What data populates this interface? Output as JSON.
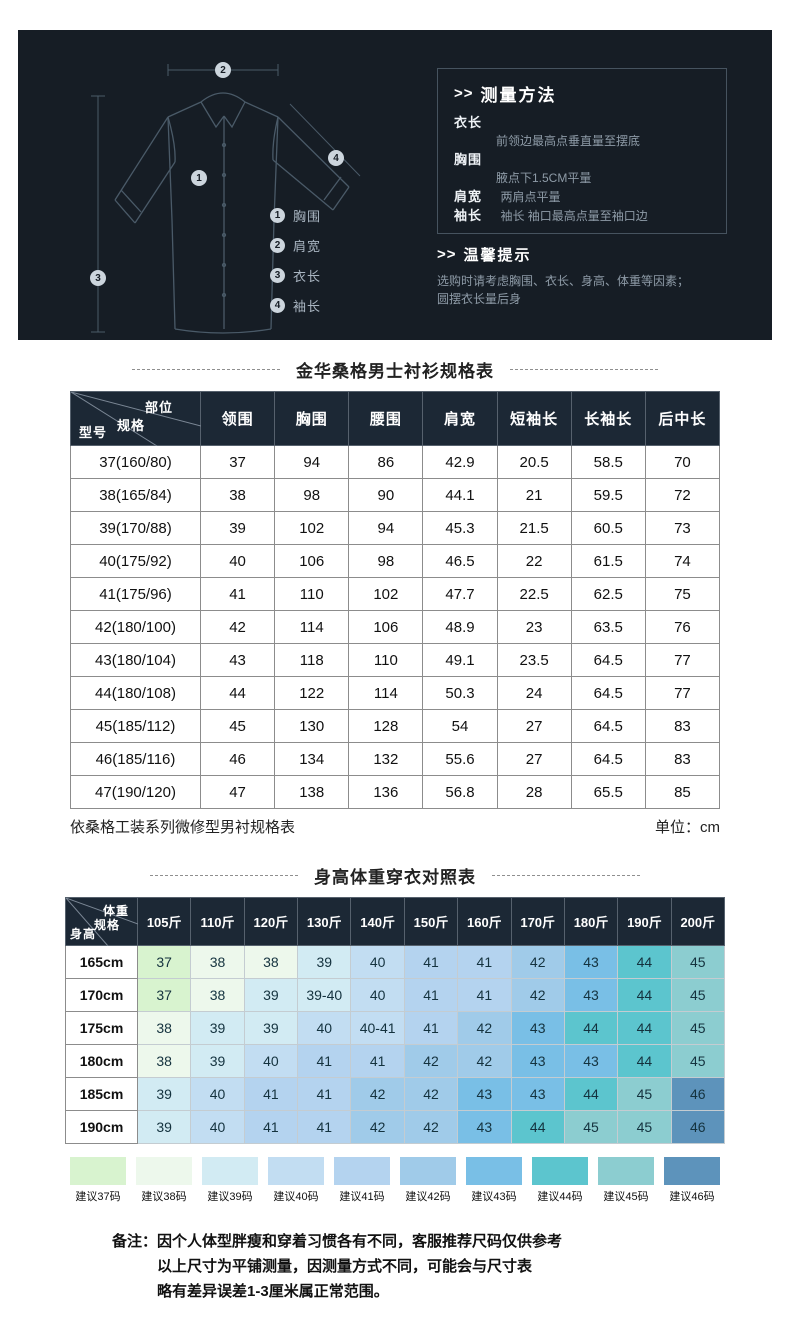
{
  "banner": {
    "measure": {
      "arrows": ">>",
      "title": "测量方法",
      "items": [
        {
          "label": "衣长",
          "desc": "前领边最高点垂直量至摆底"
        },
        {
          "label": "胸围",
          "desc": "腋点下1.5CM平量"
        },
        {
          "label": "肩宽",
          "desc": "两肩点平量"
        },
        {
          "label": "袖长",
          "desc": "袖长  袖口最高点量至袖口边"
        }
      ],
      "tips_arrows": ">>",
      "tips_title": "温馨提示",
      "tips_text": "选购时请考虑胸围、衣长、身高、体重等因素；圆摆衣长量后身"
    },
    "diagram_legend": [
      {
        "num": "1",
        "label": "胸围"
      },
      {
        "num": "2",
        "label": "肩宽"
      },
      {
        "num": "3",
        "label": "衣长"
      },
      {
        "num": "4",
        "label": "袖长"
      }
    ]
  },
  "spec_table": {
    "title": "金华桑格男士衬衫规格表",
    "corner": {
      "top": "部位",
      "mid": "规格",
      "bottom": "型号"
    },
    "columns": [
      "领围",
      "胸围",
      "腰围",
      "肩宽",
      "短袖长",
      "长袖长",
      "后中长"
    ],
    "rows": [
      {
        "model": "37(160/80)",
        "values": [
          "37",
          "94",
          "86",
          "42.9",
          "20.5",
          "58.5",
          "70"
        ]
      },
      {
        "model": "38(165/84)",
        "values": [
          "38",
          "98",
          "90",
          "44.1",
          "21",
          "59.5",
          "72"
        ]
      },
      {
        "model": "39(170/88)",
        "values": [
          "39",
          "102",
          "94",
          "45.3",
          "21.5",
          "60.5",
          "73"
        ]
      },
      {
        "model": "40(175/92)",
        "values": [
          "40",
          "106",
          "98",
          "46.5",
          "22",
          "61.5",
          "74"
        ]
      },
      {
        "model": "41(175/96)",
        "values": [
          "41",
          "110",
          "102",
          "47.7",
          "22.5",
          "62.5",
          "75"
        ]
      },
      {
        "model": "42(180/100)",
        "values": [
          "42",
          "114",
          "106",
          "48.9",
          "23",
          "63.5",
          "76"
        ]
      },
      {
        "model": "43(180/104)",
        "values": [
          "43",
          "118",
          "110",
          "49.1",
          "23.5",
          "64.5",
          "77"
        ]
      },
      {
        "model": "44(180/108)",
        "values": [
          "44",
          "122",
          "114",
          "50.3",
          "24",
          "64.5",
          "77"
        ]
      },
      {
        "model": "45(185/112)",
        "values": [
          "45",
          "130",
          "128",
          "54",
          "27",
          "64.5",
          "83"
        ]
      },
      {
        "model": "46(185/116)",
        "values": [
          "46",
          "134",
          "132",
          "55.6",
          "27",
          "64.5",
          "83"
        ]
      },
      {
        "model": "47(190/120)",
        "values": [
          "47",
          "138",
          "136",
          "56.8",
          "28",
          "65.5",
          "85"
        ]
      }
    ],
    "footnote_left": "依桑格工装系列微修型男衬规格表",
    "footnote_right": "单位：cm"
  },
  "hw_table": {
    "title": "身高体重穿衣对照表",
    "corner": {
      "top": "体重",
      "mid": "规格",
      "bottom": "身高"
    },
    "columns": [
      "105斤",
      "110斤",
      "120斤",
      "130斤",
      "140斤",
      "150斤",
      "160斤",
      "170斤",
      "180斤",
      "190斤",
      "200斤"
    ],
    "rows": [
      {
        "height": "165cm",
        "values": [
          "37",
          "38",
          "38",
          "39",
          "40",
          "41",
          "41",
          "42",
          "43",
          "44",
          "45"
        ]
      },
      {
        "height": "170cm",
        "values": [
          "37",
          "38",
          "39",
          "39-40",
          "40",
          "41",
          "41",
          "42",
          "43",
          "44",
          "45"
        ]
      },
      {
        "height": "175cm",
        "values": [
          "38",
          "39",
          "39",
          "40",
          "40-41",
          "41",
          "42",
          "43",
          "44",
          "44",
          "45"
        ]
      },
      {
        "height": "180cm",
        "values": [
          "38",
          "39",
          "40",
          "41",
          "41",
          "42",
          "42",
          "43",
          "43",
          "44",
          "45"
        ]
      },
      {
        "height": "185cm",
        "values": [
          "39",
          "40",
          "41",
          "41",
          "42",
          "42",
          "43",
          "43",
          "44",
          "45",
          "46"
        ]
      },
      {
        "height": "190cm",
        "values": [
          "39",
          "40",
          "41",
          "41",
          "42",
          "42",
          "43",
          "44",
          "45",
          "45",
          "46"
        ]
      }
    ]
  },
  "size_colors": {
    "37": "#d8f3cf",
    "38": "#edf8ec",
    "39": "#d2ebf3",
    "40": "#c2ddf2",
    "41": "#b4d3ef",
    "42": "#a0cbe9",
    "43": "#79bfe6",
    "44": "#5cc5ce",
    "45": "#8ccdd0",
    "46": "#5d93bb"
  },
  "legend": [
    {
      "size": "37",
      "label": "建议37码"
    },
    {
      "size": "38",
      "label": "建议38码"
    },
    {
      "size": "39",
      "label": "建议39码"
    },
    {
      "size": "40",
      "label": "建议40码"
    },
    {
      "size": "41",
      "label": "建议41码"
    },
    {
      "size": "42",
      "label": "建议42码"
    },
    {
      "size": "43",
      "label": "建议43码"
    },
    {
      "size": "44",
      "label": "建议44码"
    },
    {
      "size": "45",
      "label": "建议45码"
    },
    {
      "size": "46",
      "label": "建议46码"
    }
  ],
  "notes": {
    "prefix": "备注：",
    "lines": [
      "因个人体型胖瘦和穿着习惯各有不同，客服推荐尺码仅供参考",
      "以上尺寸为平铺测量，因测量方式不同，可能会与尺寸表",
      "略有差异误差1-3厘米属正常范围。"
    ]
  }
}
